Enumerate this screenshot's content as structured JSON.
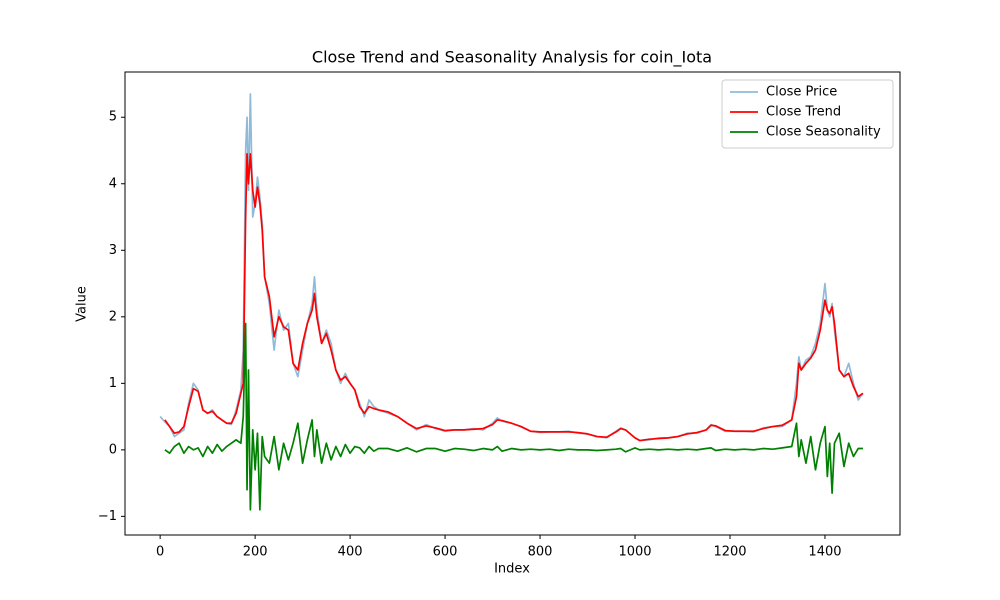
{
  "chart_data": {
    "type": "line",
    "title": "Close Trend and Seasonality Analysis for coin_Iota",
    "x_label": "Index",
    "y_label": "Value",
    "x": [
      0,
      10,
      20,
      30,
      40,
      50,
      60,
      70,
      80,
      90,
      100,
      110,
      120,
      130,
      140,
      150,
      160,
      170,
      175,
      180,
      183,
      186,
      190,
      195,
      200,
      205,
      210,
      215,
      220,
      230,
      240,
      250,
      260,
      270,
      280,
      290,
      300,
      310,
      320,
      325,
      330,
      340,
      350,
      360,
      370,
      380,
      390,
      400,
      410,
      420,
      430,
      440,
      450,
      460,
      480,
      500,
      520,
      540,
      560,
      580,
      600,
      620,
      640,
      660,
      680,
      700,
      710,
      720,
      740,
      760,
      780,
      800,
      820,
      840,
      860,
      880,
      900,
      920,
      940,
      960,
      970,
      980,
      1000,
      1010,
      1030,
      1050,
      1070,
      1090,
      1110,
      1130,
      1150,
      1160,
      1170,
      1190,
      1210,
      1230,
      1250,
      1270,
      1290,
      1310,
      1330,
      1340,
      1345,
      1350,
      1360,
      1370,
      1380,
      1390,
      1400,
      1405,
      1410,
      1415,
      1420,
      1430,
      1440,
      1450,
      1460,
      1470,
      1480
    ],
    "series": [
      {
        "name": "Close Price",
        "color": "#8fbbd9",
        "values": [
          0.5,
          0.42,
          0.35,
          0.2,
          0.25,
          0.3,
          0.7,
          1.0,
          0.9,
          0.6,
          0.55,
          0.6,
          0.5,
          0.45,
          0.4,
          0.38,
          0.6,
          0.9,
          1.5,
          4.5,
          5.0,
          3.9,
          5.35,
          3.5,
          3.7,
          4.1,
          3.8,
          3.4,
          2.6,
          2.2,
          1.5,
          2.1,
          1.8,
          1.9,
          1.3,
          1.1,
          1.5,
          1.9,
          2.2,
          2.6,
          2.1,
          1.6,
          1.8,
          1.6,
          1.2,
          1.0,
          1.15,
          1.0,
          0.9,
          0.7,
          0.5,
          0.75,
          0.65,
          0.6,
          0.55,
          0.5,
          0.4,
          0.3,
          0.38,
          0.32,
          0.28,
          0.3,
          0.3,
          0.32,
          0.3,
          0.4,
          0.48,
          0.43,
          0.4,
          0.35,
          0.28,
          0.26,
          0.27,
          0.27,
          0.28,
          0.25,
          0.24,
          0.2,
          0.18,
          0.28,
          0.33,
          0.3,
          0.18,
          0.14,
          0.15,
          0.18,
          0.18,
          0.2,
          0.25,
          0.25,
          0.3,
          0.38,
          0.35,
          0.28,
          0.28,
          0.28,
          0.27,
          0.33,
          0.35,
          0.35,
          0.45,
          1.0,
          1.4,
          1.2,
          1.35,
          1.4,
          1.6,
          1.9,
          2.5,
          2.1,
          2.0,
          2.2,
          1.8,
          1.2,
          1.1,
          1.3,
          1.0,
          0.75,
          0.85
        ]
      },
      {
        "name": "Close Trend",
        "color": "#ff0000",
        "values": [
          null,
          0.45,
          0.35,
          0.25,
          0.27,
          0.35,
          0.65,
          0.92,
          0.88,
          0.6,
          0.55,
          0.58,
          0.5,
          0.45,
          0.4,
          0.4,
          0.55,
          0.85,
          1.0,
          3.5,
          4.45,
          4.0,
          4.45,
          3.9,
          3.65,
          3.95,
          3.7,
          3.3,
          2.6,
          2.3,
          1.7,
          2.0,
          1.85,
          1.8,
          1.3,
          1.2,
          1.6,
          1.9,
          2.1,
          2.35,
          2.0,
          1.6,
          1.75,
          1.5,
          1.2,
          1.05,
          1.1,
          1.0,
          0.9,
          0.65,
          0.55,
          0.65,
          0.62,
          0.6,
          0.57,
          0.5,
          0.4,
          0.32,
          0.36,
          0.33,
          0.29,
          0.3,
          0.3,
          0.31,
          0.32,
          0.38,
          0.45,
          0.44,
          0.4,
          0.35,
          0.28,
          0.27,
          0.27,
          0.27,
          0.27,
          0.26,
          0.24,
          0.2,
          0.19,
          0.27,
          0.32,
          0.3,
          0.18,
          0.14,
          0.16,
          0.17,
          0.18,
          0.2,
          0.24,
          0.26,
          0.3,
          0.37,
          0.36,
          0.29,
          0.28,
          0.28,
          0.28,
          0.32,
          0.35,
          0.37,
          0.45,
          0.8,
          1.3,
          1.2,
          1.3,
          1.38,
          1.5,
          1.8,
          2.25,
          2.1,
          2.05,
          2.15,
          1.9,
          1.2,
          1.1,
          1.15,
          0.95,
          0.8,
          0.85
        ]
      },
      {
        "name": "Close Seasonality",
        "color": "#008000",
        "values": [
          null,
          0.0,
          -0.05,
          0.05,
          0.1,
          -0.05,
          0.05,
          0.0,
          0.03,
          -0.1,
          0.05,
          -0.05,
          0.08,
          -0.02,
          0.05,
          0.1,
          0.15,
          0.1,
          0.5,
          1.9,
          -0.6,
          1.2,
          -0.9,
          0.3,
          -0.3,
          0.25,
          -0.9,
          0.2,
          -0.1,
          -0.2,
          0.2,
          -0.3,
          0.1,
          -0.15,
          0.1,
          0.4,
          -0.2,
          0.15,
          0.45,
          -0.1,
          0.3,
          -0.2,
          0.1,
          -0.15,
          0.05,
          -0.1,
          0.08,
          -0.05,
          0.05,
          0.03,
          -0.05,
          0.05,
          -0.02,
          0.02,
          0.02,
          -0.02,
          0.03,
          -0.03,
          0.02,
          0.02,
          -0.02,
          0.02,
          0.01,
          -0.01,
          0.02,
          0.0,
          0.05,
          -0.02,
          0.02,
          0.0,
          0.01,
          0.0,
          0.01,
          -0.01,
          0.01,
          0.0,
          0.0,
          -0.01,
          0.0,
          0.01,
          0.02,
          -0.03,
          0.03,
          0.0,
          0.01,
          0.0,
          0.01,
          0.0,
          0.01,
          0.0,
          0.02,
          0.03,
          -0.01,
          0.01,
          0.0,
          0.01,
          0.0,
          0.02,
          0.01,
          0.03,
          0.05,
          0.4,
          -0.1,
          0.15,
          -0.2,
          0.2,
          -0.3,
          0.1,
          0.35,
          -0.4,
          0.1,
          -0.65,
          0.1,
          0.25,
          -0.25,
          0.1,
          -0.1,
          0.02,
          0.02
        ]
      }
    ],
    "xlim": [
      -74,
      1558
    ],
    "ylim": [
      -1.28,
      5.68
    ],
    "xticks": [
      0,
      200,
      400,
      600,
      800,
      1000,
      1200,
      1400
    ],
    "yticks": [
      {
        "value": -1,
        "label": "−1"
      },
      0,
      1,
      2,
      3,
      4,
      5
    ],
    "grid": false,
    "legend": "upper right"
  }
}
